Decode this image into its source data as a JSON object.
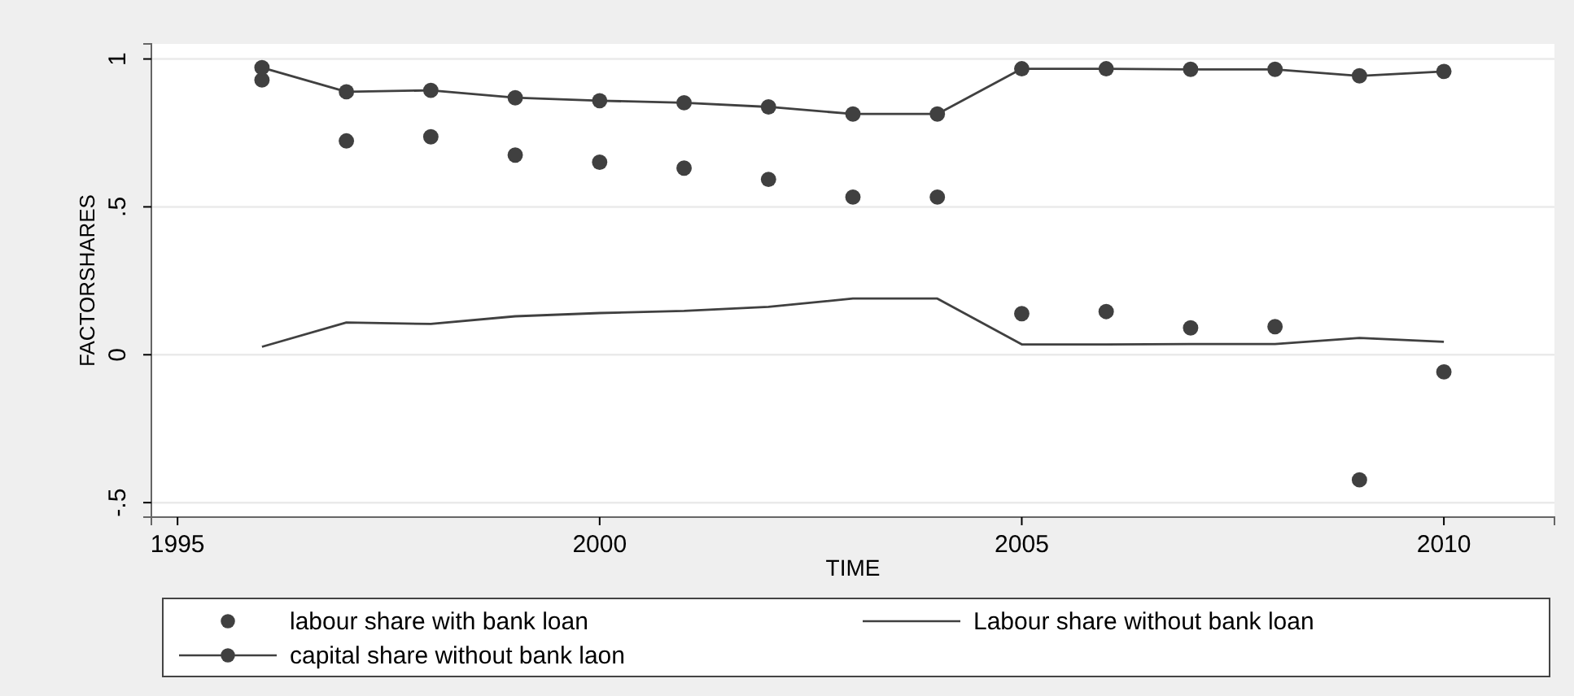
{
  "chart_data": {
    "type": "line",
    "xlabel": "TIME",
    "ylabel": "FACTORSHARES",
    "xlim": [
      1994.69,
      2011.31
    ],
    "xticks": [
      1995,
      2000,
      2005,
      2010
    ],
    "ylim": [
      -0.549,
      1.051
    ],
    "yticks": [
      {
        "value": -0.5,
        "label": "-.5"
      },
      0,
      {
        "value": 0.5,
        "label": ".5"
      },
      1
    ],
    "grid": "y",
    "legend": "bottom",
    "x": [
      1996,
      1997,
      1998,
      1999,
      2000,
      2001,
      2002,
      2003,
      2004,
      2005,
      2006,
      2007,
      2008,
      2009,
      2010
    ],
    "series": [
      {
        "name": "labour share with bank loan",
        "type": "scatter",
        "marker": "circle",
        "color": "#404040",
        "values": [
          0.929,
          0.723,
          0.737,
          0.675,
          0.651,
          0.631,
          0.593,
          0.533,
          0.533,
          0.139,
          0.146,
          0.091,
          0.095,
          -0.423,
          -0.058
        ]
      },
      {
        "name": "Labour share without bank loan",
        "type": "line",
        "marker": "none",
        "color": "#404040",
        "values": [
          0.027,
          0.109,
          0.104,
          0.13,
          0.141,
          0.148,
          0.162,
          0.19,
          0.19,
          0.035,
          0.035,
          0.036,
          0.036,
          0.057,
          0.044
        ]
      },
      {
        "name": "capital share without bank laon",
        "type": "line",
        "marker": "circle",
        "color": "#404040",
        "values": [
          0.971,
          0.889,
          0.894,
          0.869,
          0.859,
          0.852,
          0.838,
          0.814,
          0.814,
          0.967,
          0.967,
          0.965,
          0.965,
          0.943,
          0.958
        ]
      }
    ]
  }
}
